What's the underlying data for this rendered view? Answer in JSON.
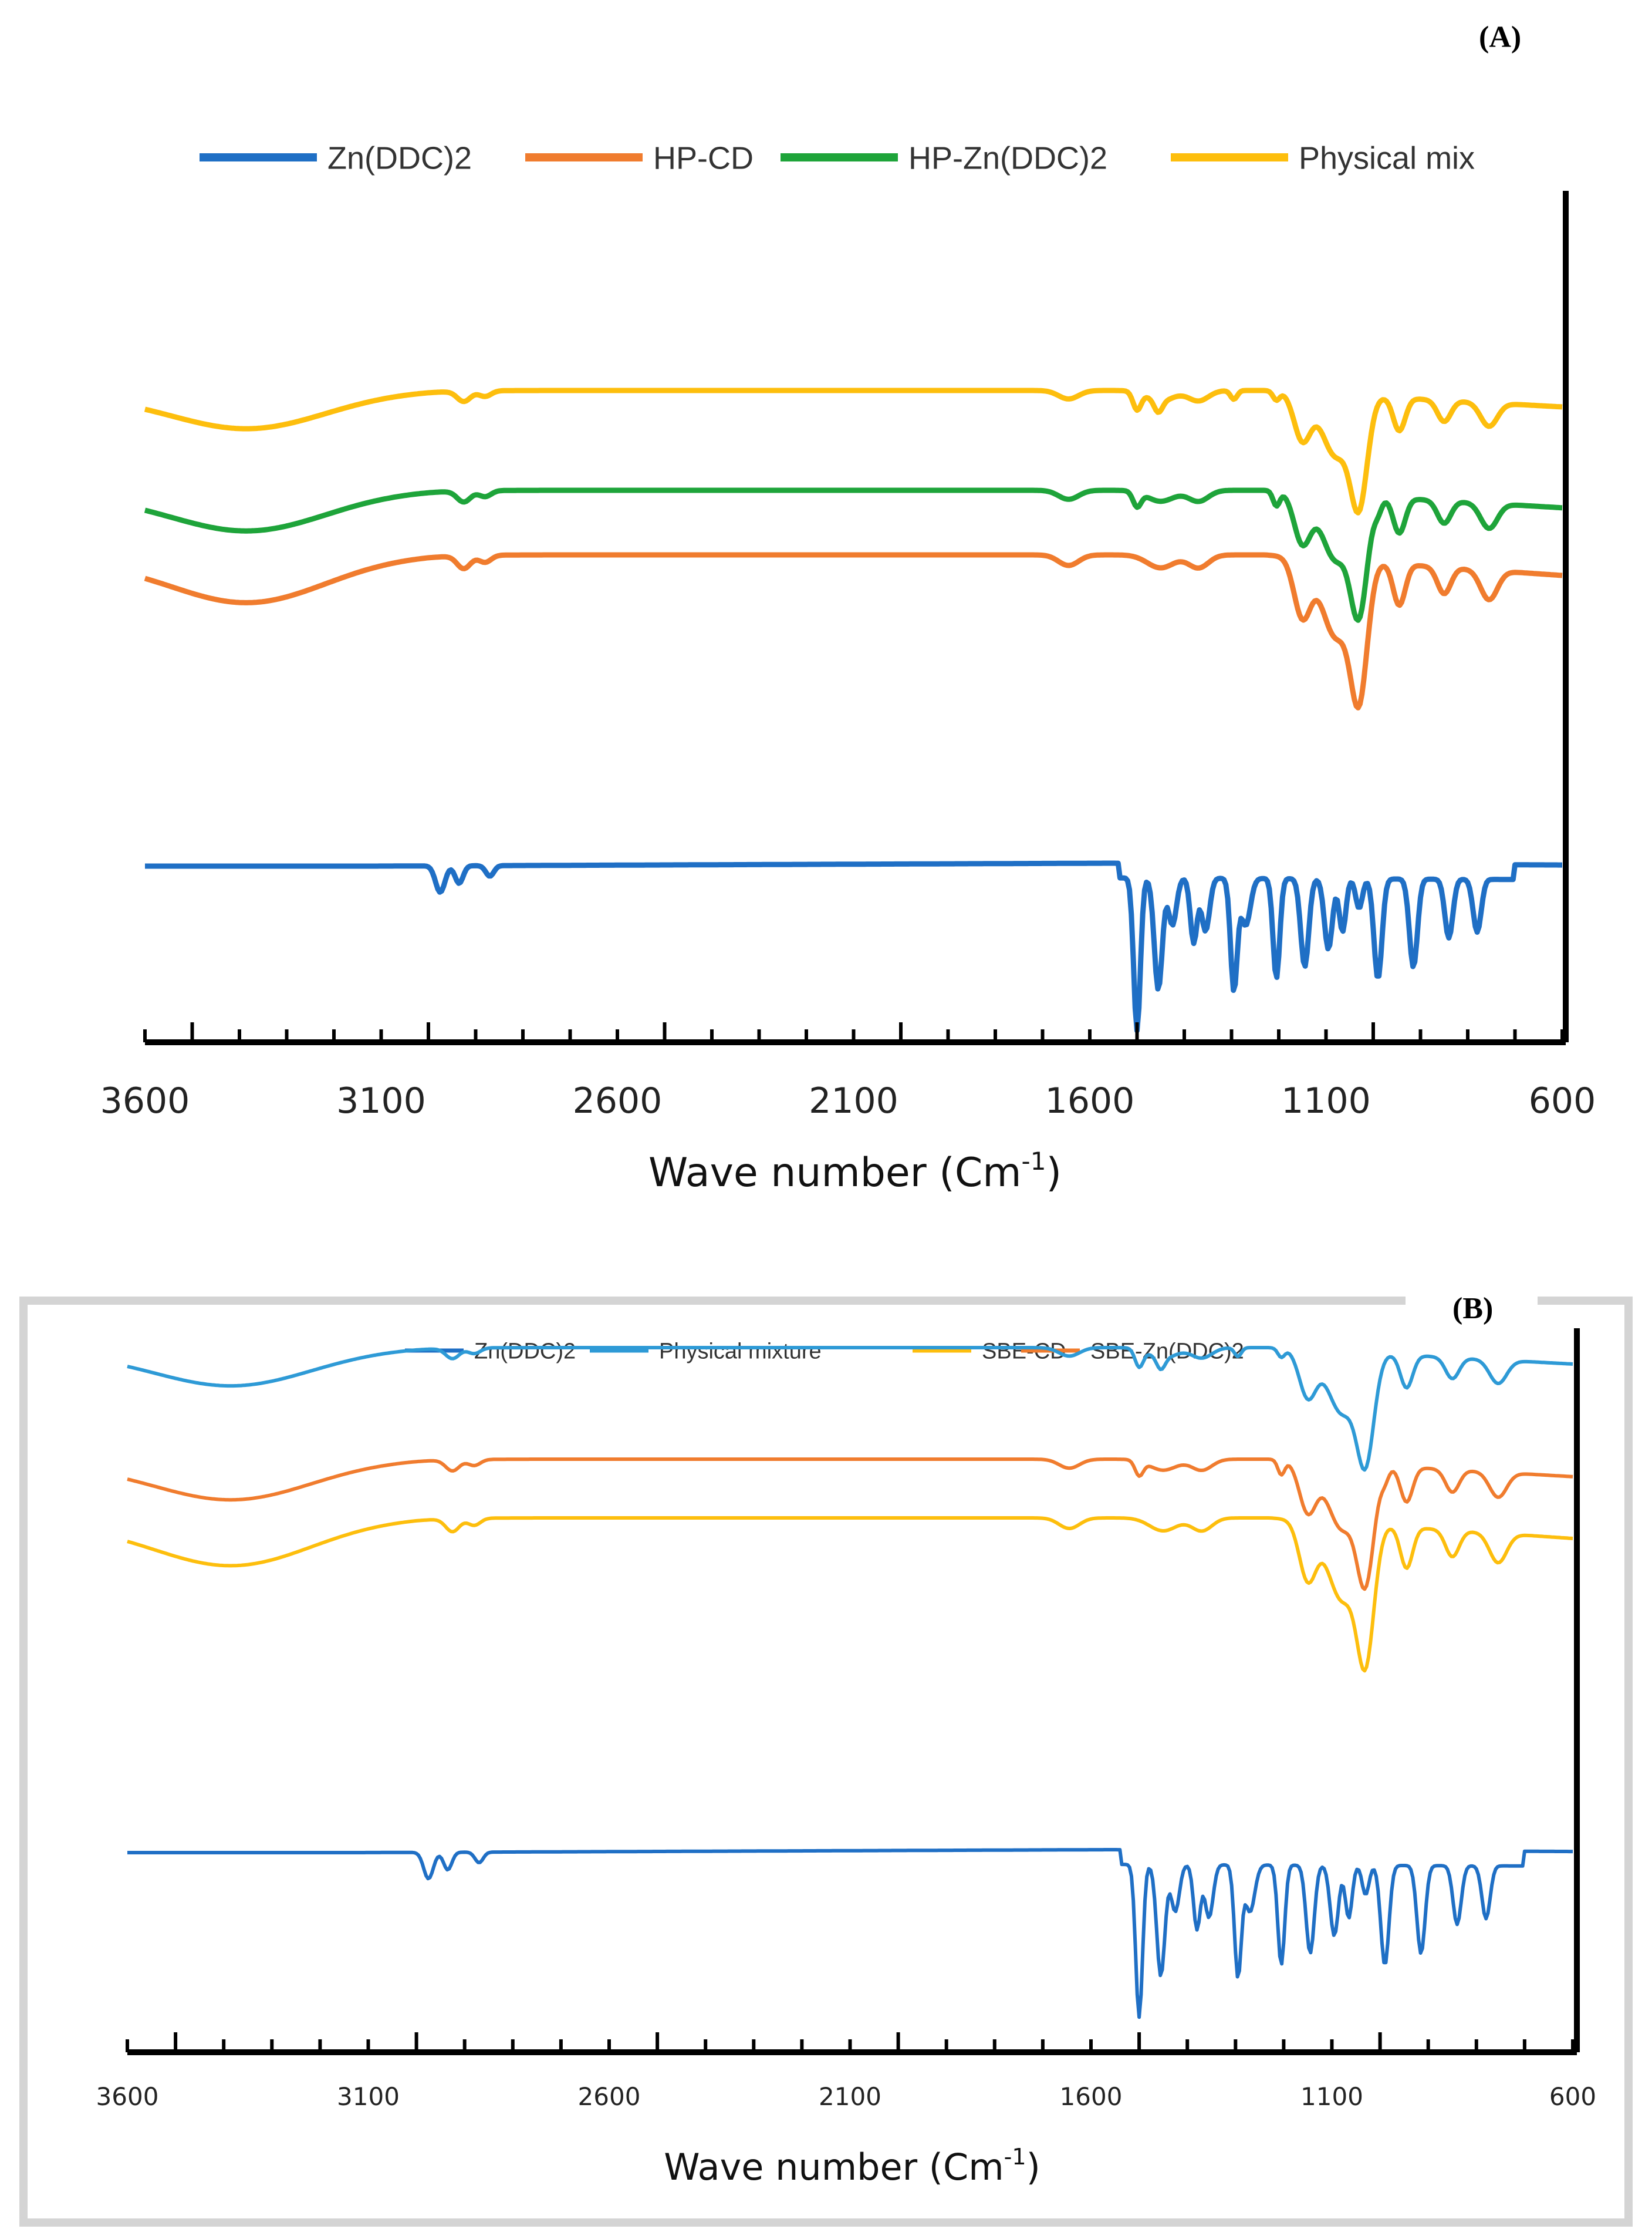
{
  "chart_data": [
    {
      "panel": "A",
      "panel_label": "A",
      "type": "line",
      "title": "",
      "xlabel": "Wave number (Cm",
      "xlabel_sup": "-1",
      "xlabel_tail": ")",
      "xlim": [
        3600,
        600
      ],
      "x_ticks": [
        "3600",
        "3100",
        "2600",
        "2100",
        "1600",
        "1100",
        "600"
      ],
      "ylabel": "",
      "y_axis": "right",
      "legend_position": "top",
      "series": [
        {
          "name": "Zn(DDC)2",
          "color": "#1F6FC5",
          "offset": 3.0,
          "profile": "znddc"
        },
        {
          "name": "HP-CD",
          "color": "#F07C2E",
          "offset": 8.3,
          "profile": "cd"
        },
        {
          "name": "HP-Zn(DDC)2",
          "color": "#1EA43A",
          "offset": 9.4,
          "profile": "complex"
        },
        {
          "name": "Physical mix",
          "color": "#FDBE0D",
          "offset": 11.1,
          "profile": "physmix"
        }
      ]
    },
    {
      "panel": "B",
      "panel_label": "B",
      "type": "line",
      "title": "",
      "xlabel": "Wave number (Cm",
      "xlabel_sup": "-1",
      "xlabel_tail": ")",
      "xlim": [
        3600,
        600
      ],
      "x_ticks": [
        "3600",
        "3100",
        "2600",
        "2100",
        "1600",
        "1100",
        "600"
      ],
      "ylabel": "",
      "y_axis": "right",
      "legend_position": "top",
      "series": [
        {
          "name": "Zn(DDC)2",
          "color": "#1F6FC5",
          "offset": 3.4,
          "profile": "znddc"
        },
        {
          "name": "Physical mixture",
          "color": "#2E9AD6",
          "offset": 12.0,
          "profile": "physmix"
        },
        {
          "name": "SBE-CD",
          "color": "#FDBE0D",
          "offset": 9.1,
          "profile": "cd"
        },
        {
          "name": "SBE-Zn(DDC)2",
          "color": "#F07C2E",
          "offset": 10.1,
          "profile": "complex"
        }
      ]
    }
  ]
}
